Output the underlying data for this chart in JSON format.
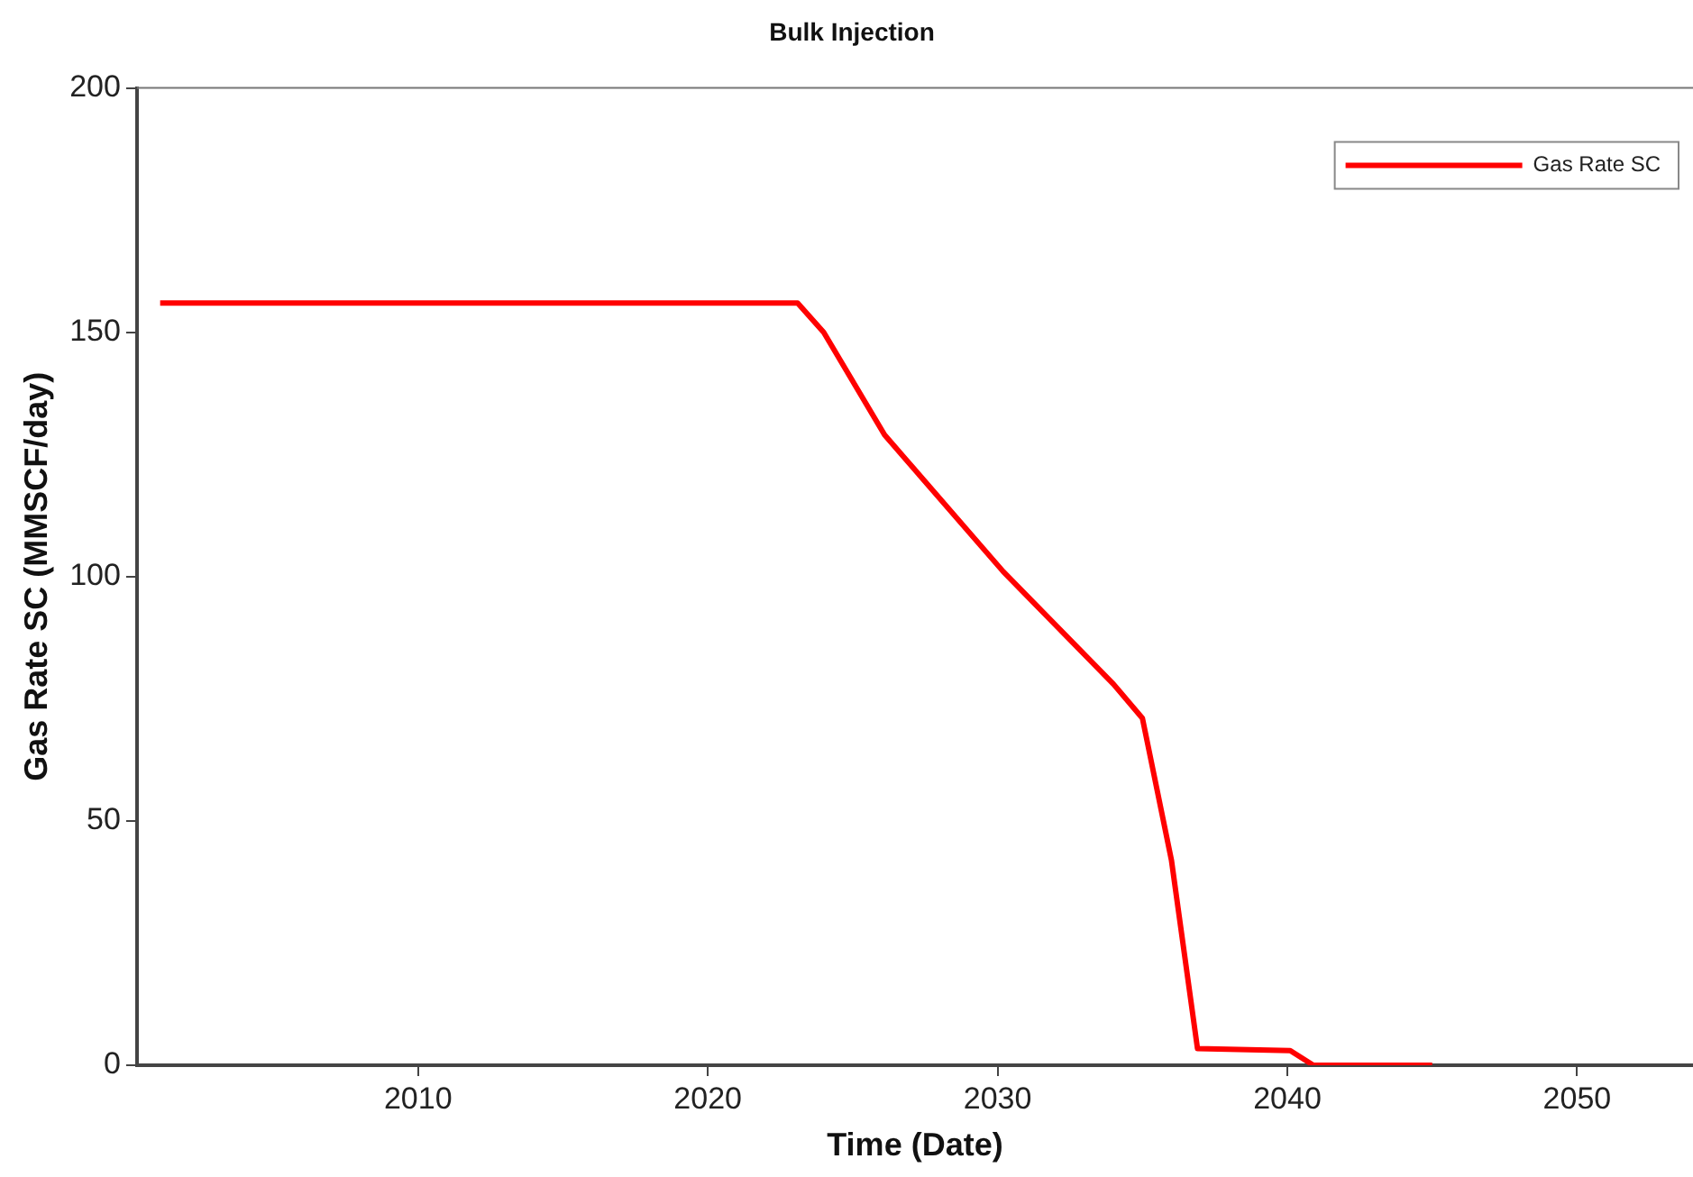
{
  "chart_data": {
    "type": "line",
    "title": "Bulk Injection",
    "xlabel": "Time (Date)",
    "ylabel": "Gas Rate SC (MMSCF/day)",
    "x": [
      2001.1,
      2023.1,
      2024.0,
      2026.1,
      2030.2,
      2034.0,
      2035.0,
      2036.0,
      2036.9,
      2040.1,
      2040.9,
      2045.0
    ],
    "series": [
      {
        "name": "Gas Rate SC",
        "color": "#ff0000",
        "values": [
          156,
          156,
          150,
          129,
          101,
          78,
          71,
          42,
          3.4,
          3,
          0,
          0
        ]
      }
    ],
    "xlim": [
      2000.3,
      2054
    ],
    "xticks": [
      2010,
      2020,
      2030,
      2040,
      2050
    ],
    "ylim": [
      0,
      200
    ],
    "yticks": [
      0,
      50,
      100,
      150,
      200
    ],
    "grid": false,
    "legend": "top right",
    "marker": "none",
    "line_style": "solid"
  }
}
